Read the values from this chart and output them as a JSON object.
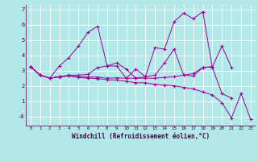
{
  "xlabel": "Windchill (Refroidissement éolien,°C)",
  "line_color": "#990099",
  "bg_color": "#b3e8e8",
  "grid_color": "#ffffff",
  "xlim": [
    -0.5,
    23.5
  ],
  "ylim": [
    -0.6,
    7.3
  ],
  "xticks": [
    0,
    1,
    2,
    3,
    4,
    5,
    6,
    7,
    8,
    9,
    10,
    11,
    12,
    13,
    14,
    15,
    16,
    17,
    18,
    19,
    20,
    21,
    22,
    23
  ],
  "yticks": [
    0,
    1,
    2,
    3,
    4,
    5,
    6,
    7
  ],
  "ytick_labels": [
    "-0",
    "1",
    "2",
    "3",
    "4",
    "5",
    "6",
    "7"
  ],
  "series": [
    {
      "x": [
        0,
        1,
        2,
        3,
        4,
        5,
        6,
        7,
        8,
        9,
        10,
        11,
        12,
        13,
        14,
        15,
        16,
        17,
        18,
        19,
        20,
        21
      ],
      "y": [
        3.25,
        2.7,
        2.5,
        3.3,
        3.85,
        4.6,
        5.5,
        5.9,
        3.3,
        3.5,
        3.1,
        2.5,
        2.6,
        4.5,
        4.4,
        6.2,
        6.75,
        6.4,
        6.85,
        3.2,
        1.5,
        1.2
      ]
    },
    {
      "x": [
        0,
        1,
        2,
        3,
        4,
        5,
        6,
        7,
        8,
        9,
        10,
        11,
        12,
        13,
        14,
        15,
        16,
        17,
        18,
        19
      ],
      "y": [
        3.25,
        2.7,
        2.5,
        2.6,
        2.7,
        2.7,
        2.75,
        3.2,
        3.3,
        3.3,
        2.5,
        3.1,
        2.6,
        2.7,
        3.5,
        4.4,
        2.7,
        2.65,
        3.2,
        3.25
      ]
    },
    {
      "x": [
        0,
        1,
        2,
        3,
        4,
        5,
        6,
        7,
        8,
        9,
        10,
        11,
        12,
        13,
        14,
        15,
        16,
        17,
        18,
        19,
        20,
        21
      ],
      "y": [
        3.25,
        2.7,
        2.5,
        2.6,
        2.65,
        2.6,
        2.58,
        2.57,
        2.5,
        2.52,
        2.5,
        2.5,
        2.5,
        2.5,
        2.55,
        2.6,
        2.7,
        2.8,
        3.2,
        3.25,
        4.6,
        3.2
      ]
    },
    {
      "x": [
        0,
        1,
        2,
        3,
        4,
        5,
        6,
        7,
        8,
        9,
        10,
        11,
        12,
        13,
        14,
        15,
        16,
        17,
        18,
        19,
        20,
        21,
        22,
        23
      ],
      "y": [
        3.25,
        2.7,
        2.5,
        2.58,
        2.65,
        2.55,
        2.5,
        2.48,
        2.4,
        2.38,
        2.3,
        2.2,
        2.2,
        2.1,
        2.05,
        2.0,
        1.9,
        1.8,
        1.6,
        1.4,
        0.9,
        -0.1,
        1.5,
        -0.2
      ]
    }
  ]
}
